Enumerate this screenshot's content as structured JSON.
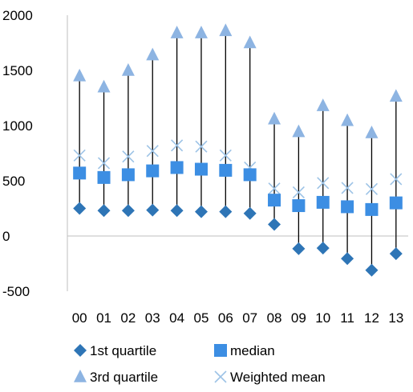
{
  "chart_data": {
    "type": "stock",
    "categories": [
      "00",
      "01",
      "02",
      "03",
      "04",
      "05",
      "06",
      "07",
      "08",
      "09",
      "10",
      "11",
      "12",
      "13"
    ],
    "ylim": [
      -500,
      2000
    ],
    "yticks": [
      "2000",
      "1500",
      "1000",
      "500",
      "0",
      "-500"
    ],
    "ytick_values": [
      2000,
      1500,
      1000,
      500,
      0,
      -500
    ],
    "grid": false,
    "legend_position": "bottom",
    "series": [
      {
        "name": "1st quartile",
        "marker": "diamond",
        "color": "#2e75b6",
        "values": [
          250,
          230,
          230,
          235,
          230,
          220,
          220,
          205,
          105,
          -115,
          -110,
          -205,
          -310,
          -160
        ]
      },
      {
        "name": "median",
        "marker": "square",
        "color": "#3c8ee3",
        "values": [
          570,
          530,
          555,
          590,
          620,
          605,
          595,
          555,
          325,
          275,
          305,
          265,
          240,
          300
        ]
      },
      {
        "name": "3rd quartile",
        "marker": "triangle",
        "color": "#8db4e2",
        "values": [
          1450,
          1350,
          1500,
          1640,
          1840,
          1840,
          1860,
          1750,
          1060,
          945,
          1180,
          1045,
          935,
          1265
        ]
      },
      {
        "name": "Weighted mean",
        "marker": "x",
        "color": "#9dc3e6",
        "values": [
          730,
          660,
          720,
          770,
          820,
          810,
          730,
          620,
          430,
          395,
          480,
          435,
          425,
          515
        ]
      }
    ],
    "hi_low_lines": {
      "color": "#000000"
    }
  }
}
